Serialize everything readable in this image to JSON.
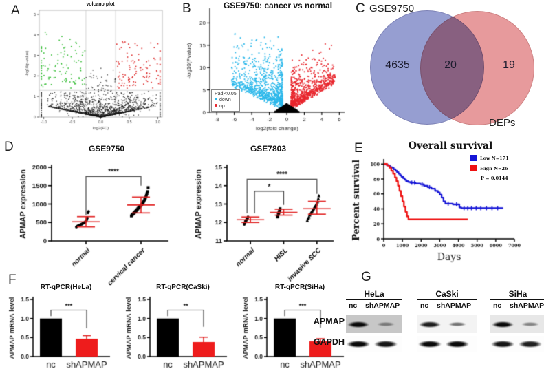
{
  "panel_labels": {
    "a": "A",
    "b": "B",
    "c": "C",
    "d": "D",
    "e": "E",
    "f": "F",
    "g": "G"
  },
  "chart_data": [
    {
      "type": "scatter",
      "variant": "volcano",
      "title": "volcano plot",
      "xlabel": "log2(FC)",
      "ylabel": "-log10(p-value)",
      "xlim": [
        -1.08,
        1.08
      ],
      "ylim": [
        0,
        5.2
      ],
      "xticks": [
        -1.0,
        -0.5,
        0.0,
        0.5,
        1.0
      ],
      "xtick_labels": [
        "-1.0",
        "-0.5",
        "0.0",
        "0.5",
        "1.0"
      ],
      "yticks": [
        0,
        1,
        2,
        3,
        4,
        5
      ],
      "fc_threshold": 0.26,
      "p_threshold": 1.3,
      "groups": [
        {
          "name": "not significant",
          "color": "#1a1a1a",
          "count": 1500
        },
        {
          "name": "down",
          "color": "#2fbb2f",
          "count": 85,
          "x_range": [
            -1.0,
            -0.26
          ],
          "y_range": [
            1.3,
            4.3
          ]
        },
        {
          "name": "up",
          "color": "#dd2626",
          "count": 100,
          "x_range": [
            0.26,
            1.0
          ],
          "y_range": [
            1.3,
            4.1
          ]
        }
      ]
    },
    {
      "type": "scatter",
      "variant": "volcano",
      "title": "GSE9750: cancer vs normal",
      "xlabel": "log2(fold change)",
      "ylabel": "-log10(Pvalue)",
      "xlim": [
        -8.8,
        6.6
      ],
      "ylim": [
        0,
        23
      ],
      "xticks": [
        -8,
        -6,
        -4,
        -2,
        0,
        2,
        4,
        6
      ],
      "yticks": [
        0,
        5,
        10,
        15,
        20
      ],
      "legend": {
        "title": "Padj<0.05",
        "items": [
          {
            "label": "down",
            "color": "#2ab7ea"
          },
          {
            "label": "up",
            "color": "#e8262d"
          }
        ]
      },
      "groups": [
        {
          "name": "not significant",
          "color": "#000000",
          "count": 2600
        },
        {
          "name": "down",
          "color": "#2ab7ea",
          "count": 950,
          "x_range": [
            -8.2,
            -0.5
          ],
          "y_range": [
            0.5,
            22.4
          ]
        },
        {
          "name": "up",
          "color": "#e8262d",
          "count": 850,
          "x_range": [
            0.5,
            5.6
          ],
          "y_range": [
            0.5,
            19.7
          ]
        }
      ]
    },
    {
      "type": "venn",
      "left_label": "GSE9750",
      "right_label": "DEPs",
      "left_only": "4635",
      "overlap": "20",
      "right_only": "19",
      "left_color": "#8d95cd",
      "right_color": "#e59193"
    },
    {
      "type": "scatter",
      "variant": "column-dot",
      "title": "GSE9750",
      "ylabel": "APMAP expression",
      "ylim": [
        0,
        2000
      ],
      "yticks": [
        0,
        500,
        1000,
        1500,
        2000
      ],
      "categories": [
        "normal",
        "cervical cancer"
      ],
      "groups": [
        {
          "category": "normal",
          "marker": "circle",
          "mean": 520,
          "err_low": 380,
          "err_high": 660,
          "points": [
            380,
            390,
            400,
            405,
            415,
            420,
            430,
            440,
            450,
            455,
            460,
            470,
            480,
            490,
            500,
            510,
            530,
            550,
            580,
            620,
            760,
            800
          ]
        },
        {
          "category": "cervical cancer",
          "marker": "square",
          "mean": 975,
          "err_low": 760,
          "err_high": 1190,
          "points": [
            680,
            700,
            720,
            730,
            750,
            760,
            780,
            800,
            810,
            830,
            850,
            870,
            890,
            900,
            920,
            940,
            950,
            970,
            990,
            1010,
            1040,
            1060,
            1090,
            1120,
            1150,
            1190,
            1240,
            1290,
            1340,
            1450
          ]
        }
      ],
      "significance": [
        {
          "from": 0,
          "to": 1,
          "label": "****",
          "bar_y": 1750,
          "leg1_y": 700,
          "leg2_y": 1500,
          "dx1": 0
        }
      ]
    },
    {
      "type": "scatter",
      "variant": "column-dot",
      "title": "GSE7803",
      "ylabel": "APMAP expression",
      "ylim": [
        11,
        15
      ],
      "yticks": [
        11,
        12,
        13,
        14,
        15
      ],
      "categories": [
        "normal",
        "HISL",
        "invasive SCC"
      ],
      "groups": [
        {
          "category": "normal",
          "marker": "circle",
          "mean": 12.15,
          "err_low": 12.0,
          "err_high": 12.3,
          "points": [
            11.9,
            11.95,
            12.0,
            12.05,
            12.1,
            12.1,
            12.15,
            12.2,
            12.2,
            12.25,
            12.3
          ]
        },
        {
          "category": "HISL",
          "marker": "square",
          "mean": 12.55,
          "err_low": 12.4,
          "err_high": 12.72,
          "points": [
            12.3,
            12.35,
            12.45,
            12.5,
            12.55,
            12.6,
            12.68,
            12.75
          ]
        },
        {
          "category": "invasive SCC",
          "marker": "triangle",
          "mean": 12.75,
          "err_low": 12.45,
          "err_high": 13.15,
          "points": [
            12.1,
            12.2,
            12.25,
            12.3,
            12.4,
            12.45,
            12.5,
            12.55,
            12.6,
            12.65,
            12.7,
            12.75,
            12.8,
            12.85,
            12.9,
            12.95,
            13.0,
            13.1,
            13.15,
            13.3,
            13.45
          ]
        }
      ],
      "significance": [
        {
          "from": 0,
          "to": 1,
          "label": "*",
          "bar_y": 13.7,
          "leg1_y": 12.5,
          "leg2_y": 12.95,
          "dx1": 6
        },
        {
          "from": 0,
          "to": 2,
          "label": "****",
          "bar_y": 14.35,
          "leg1_y": 12.5,
          "leg2_y": 13.55,
          "dx1": -5
        }
      ]
    },
    {
      "type": "line",
      "variant": "kaplan-meier",
      "title": "Overall survival",
      "xlabel": "Days",
      "ylabel": "Percent survival",
      "xlim": [
        0,
        7000
      ],
      "ylim": [
        0,
        103
      ],
      "xticks": [
        0,
        1000,
        2000,
        3000,
        4000,
        5000,
        6000,
        7000
      ],
      "yticks": [
        0,
        20,
        40,
        60,
        80,
        100
      ],
      "p_label": "P = 0.0144",
      "series": [
        {
          "label": "Low N=171",
          "color": "#1515d6",
          "steps": [
            [
              0,
              100
            ],
            [
              130,
              99
            ],
            [
              230,
              98
            ],
            [
              330,
              96
            ],
            [
              430,
              95
            ],
            [
              530,
              93
            ],
            [
              630,
              91
            ],
            [
              710,
              89
            ],
            [
              790,
              87
            ],
            [
              870,
              85
            ],
            [
              950,
              83
            ],
            [
              1040,
              81
            ],
            [
              1120,
              79
            ],
            [
              1200,
              77
            ],
            [
              1300,
              76
            ],
            [
              1420,
              75
            ],
            [
              1700,
              74
            ],
            [
              1950,
              73
            ],
            [
              2150,
              71
            ],
            [
              2350,
              69
            ],
            [
              2550,
              67
            ],
            [
              2750,
              64
            ],
            [
              2900,
              62
            ],
            [
              3000,
              59
            ],
            [
              3100,
              55
            ],
            [
              3200,
              50
            ],
            [
              3300,
              47
            ],
            [
              3700,
              46
            ],
            [
              4050,
              42
            ],
            [
              4150,
              41
            ],
            [
              6400,
              41
            ]
          ]
        },
        {
          "label": "High N=26",
          "color": "#ee1111",
          "steps": [
            [
              0,
              100
            ],
            [
              180,
              98
            ],
            [
              300,
              95
            ],
            [
              400,
              91
            ],
            [
              500,
              87
            ],
            [
              600,
              82
            ],
            [
              680,
              77
            ],
            [
              760,
              71
            ],
            [
              840,
              64
            ],
            [
              920,
              57
            ],
            [
              1000,
              50
            ],
            [
              1080,
              43
            ],
            [
              1160,
              36
            ],
            [
              1240,
              30
            ],
            [
              1320,
              26
            ],
            [
              4500,
              26
            ]
          ]
        }
      ],
      "censor_ticks_x": [
        1500,
        1650,
        2050,
        2450,
        3450,
        3900,
        4300,
        4500,
        4700,
        4950,
        5200,
        5500,
        5800,
        6100
      ]
    },
    {
      "type": "bar",
      "title": "RT-qPCR(HeLa)",
      "ylabel": "APMAP mRNA level",
      "categories": [
        "nc",
        "shAPMAP"
      ],
      "values": [
        1.0,
        0.47
      ],
      "errors": [
        0,
        0.08
      ],
      "colors": [
        "#000000",
        "#ee1c1c"
      ],
      "ylim": [
        0,
        1.5
      ],
      "yticks": [
        0,
        0.5,
        1,
        1.5
      ],
      "ytick_labels": [
        "0.0",
        "0.5",
        "1.0",
        "1.5"
      ],
      "significance": {
        "label": "***",
        "bar_y": 1.22,
        "leg1_y": 1.06,
        "leg2_y": 0.74
      }
    },
    {
      "type": "bar",
      "title": "RT-qPCR(CaSki)",
      "ylabel": "APMAP mRNA level",
      "categories": [
        "nc",
        "shAPMAP"
      ],
      "values": [
        1.0,
        0.38
      ],
      "errors": [
        0,
        0.13
      ],
      "colors": [
        "#000000",
        "#ee1c1c"
      ],
      "ylim": [
        0,
        1.5
      ],
      "yticks": [
        0,
        0.5,
        1,
        1.5
      ],
      "ytick_labels": [
        "0.0",
        "0.5",
        "1.0",
        "1.5"
      ],
      "significance": {
        "label": "**",
        "bar_y": 1.22,
        "leg1_y": 1.06,
        "leg2_y": 0.78
      }
    },
    {
      "type": "bar",
      "title": "RT-qPCR(SiHa)",
      "ylabel": "APMAP mRNA level",
      "categories": [
        "nc",
        "shAPMAP"
      ],
      "values": [
        1.0,
        0.4
      ],
      "errors": [
        0,
        0.07
      ],
      "colors": [
        "#000000",
        "#ee1c1c"
      ],
      "ylim": [
        0,
        1.5
      ],
      "yticks": [
        0,
        0.5,
        1,
        1.5
      ],
      "ytick_labels": [
        "0.0",
        "0.5",
        "1.0",
        "1.5"
      ],
      "significance": {
        "label": "***",
        "bar_y": 1.22,
        "leg1_y": 1.06,
        "leg2_y": 0.76
      }
    }
  ],
  "blots": {
    "row_labels": [
      "APMAP",
      "GAPDH"
    ],
    "groups": [
      {
        "name": "HeLa",
        "lanes": [
          "nc",
          "shAPMAP"
        ],
        "apmap_bg": "#c7c7c7",
        "apmap_intensity": [
          1.0,
          0.42
        ],
        "gapdh_intensity": [
          1.0,
          0.95
        ]
      },
      {
        "name": "CaSki",
        "lanes": [
          "nc",
          "shAPMAP"
        ],
        "apmap_bg": "#f3f3f3",
        "apmap_intensity": [
          0.9,
          0.55
        ],
        "gapdh_intensity": [
          1.0,
          1.0
        ]
      },
      {
        "name": "SiHa",
        "lanes": [
          "nc",
          "shAPMAP"
        ],
        "apmap_bg": "#e7e7e7",
        "apmap_intensity": [
          1.0,
          0.45
        ],
        "gapdh_intensity": [
          0.95,
          0.9
        ]
      }
    ]
  }
}
